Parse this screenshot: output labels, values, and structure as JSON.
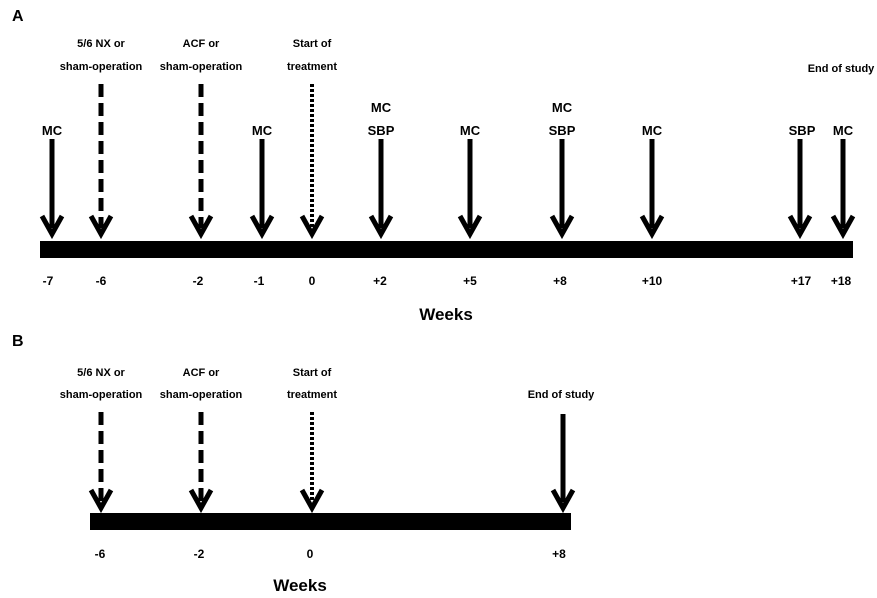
{
  "panel_a": {
    "label": "A",
    "axis_label": "Weeks",
    "ticks": [
      "-7",
      "-6",
      "-2",
      "-1",
      "0",
      "+2",
      "+5",
      "+8",
      "+10",
      "+17",
      "+18"
    ],
    "event_labels": {
      "nx": [
        "5/6 NX or",
        "sham-operation"
      ],
      "acf": [
        "ACF or",
        "sham-operation"
      ],
      "treatment": [
        "Start of",
        "treatment"
      ],
      "end": "End of study"
    },
    "markers": [
      {
        "week": "-7",
        "lines": [
          "MC"
        ],
        "style": "solid"
      },
      {
        "week": "-6",
        "lines": [],
        "style": "dashed"
      },
      {
        "week": "-2",
        "lines": [],
        "style": "dashed"
      },
      {
        "week": "-1",
        "lines": [
          "MC"
        ],
        "style": "solid"
      },
      {
        "week": "0",
        "lines": [],
        "style": "dotted"
      },
      {
        "week": "+2",
        "lines": [
          "MC",
          "SBP"
        ],
        "style": "solid"
      },
      {
        "week": "+5",
        "lines": [
          "MC"
        ],
        "style": "solid"
      },
      {
        "week": "+8",
        "lines": [
          "MC",
          "SBP"
        ],
        "style": "solid"
      },
      {
        "week": "+10",
        "lines": [
          "MC"
        ],
        "style": "solid"
      },
      {
        "week": "+17",
        "lines": [
          "SBP"
        ],
        "style": "solid"
      },
      {
        "week": "+18",
        "lines": [
          "MC"
        ],
        "style": "solid"
      }
    ]
  },
  "panel_b": {
    "label": "B",
    "axis_label": "Weeks",
    "ticks": [
      "-6",
      "-2",
      "0",
      "+8"
    ],
    "event_labels": {
      "nx": [
        "5/6 NX or",
        "sham-operation"
      ],
      "acf": [
        "ACF or",
        "sham-operation"
      ],
      "treatment": [
        "Start of",
        "treatment"
      ],
      "end": "End of study"
    },
    "markers": [
      {
        "week": "-6",
        "style": "dashed"
      },
      {
        "week": "-2",
        "style": "dashed"
      },
      {
        "week": "0",
        "style": "dotted"
      },
      {
        "week": "+8",
        "style": "solid"
      }
    ]
  }
}
